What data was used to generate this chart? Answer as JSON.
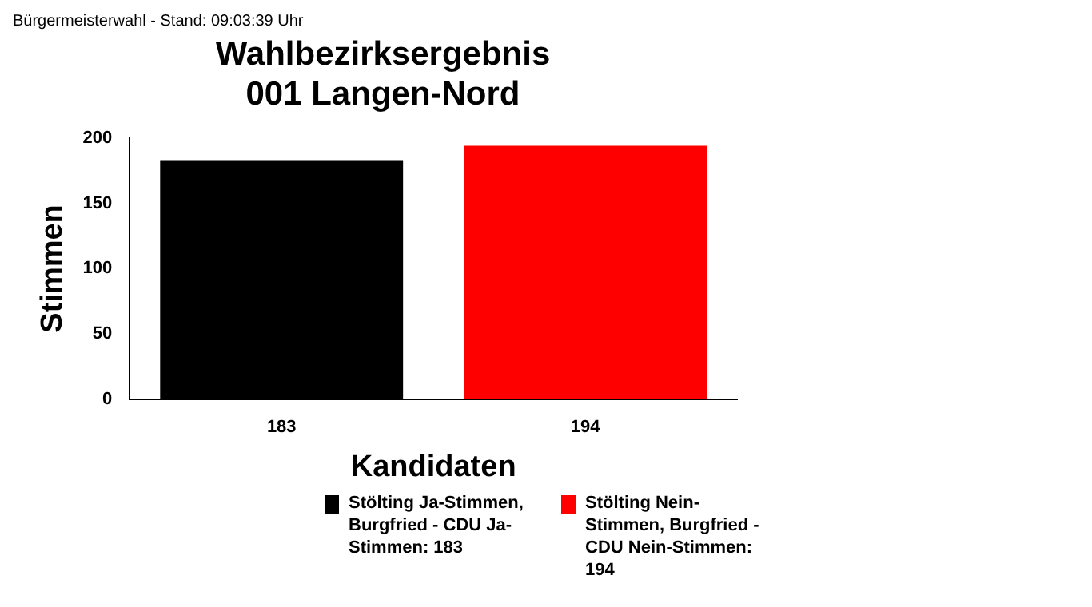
{
  "chart_data": {
    "type": "bar",
    "title": "Wahlbezirksergebnis\n001 Langen-Nord",
    "annotations": [
      "Bürgermeisterwahl - Stand: 09:03:39 Uhr"
    ],
    "xlabel": "Kandidaten",
    "ylabel": "Stimmen",
    "categories": [
      "183",
      "194"
    ],
    "series": [
      {
        "name": "Stölting Ja-Stimmen, Burgfried - CDU Ja-Stimmen: 183",
        "color": "#000000",
        "values": [
          183,
          null
        ]
      },
      {
        "name": "Stölting Nein-Stimmen, Burgfried - CDU Nein-Stimmen: 194",
        "color": "#ff0000",
        "values": [
          null,
          194
        ]
      }
    ],
    "ylim": [
      0,
      200
    ],
    "yticks": [
      0,
      50,
      100,
      150,
      200
    ],
    "grid": false,
    "legend": "bottom"
  }
}
